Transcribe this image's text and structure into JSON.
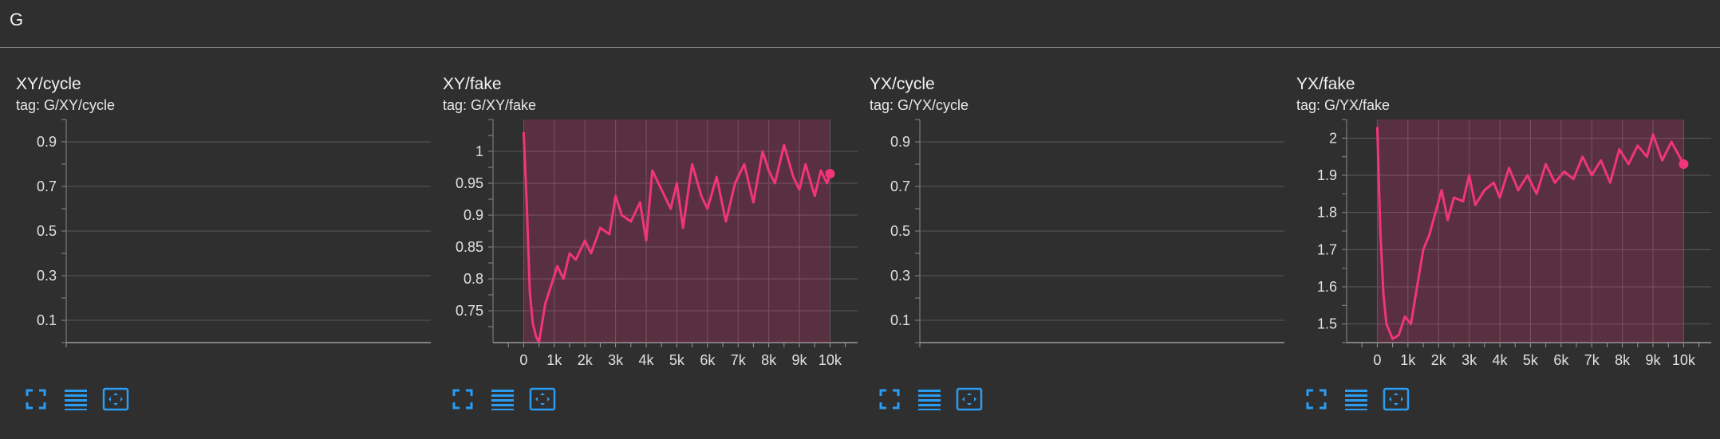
{
  "group": {
    "title": "G"
  },
  "cards": [
    {
      "title": "XY/cycle",
      "tag": "tag: G/XY/cycle"
    },
    {
      "title": "XY/fake",
      "tag": "tag: G/XY/fake"
    },
    {
      "title": "YX/cycle",
      "tag": "tag: G/YX/cycle"
    },
    {
      "title": "YX/fake",
      "tag": "tag: G/YX/fake"
    }
  ],
  "toolbar_icons": [
    "fullscreen-icon",
    "toggle-log-scale-icon",
    "fit-domain-icon"
  ],
  "colors": {
    "background": "#2f2f2f",
    "series": "#f0357a",
    "gridline": "#5a5a5a",
    "icon": "#2a9df4"
  },
  "chart_data": [
    {
      "type": "line",
      "title": "XY/cycle",
      "y_ticks": [
        "0.1",
        "0.3",
        "0.5",
        "0.7",
        "0.9"
      ],
      "ylim": [
        0,
        1.0
      ],
      "series": []
    },
    {
      "type": "line",
      "title": "XY/fake",
      "x_ticks": [
        "0",
        "1k",
        "2k",
        "3k",
        "4k",
        "5k",
        "6k",
        "7k",
        "8k",
        "9k",
        "10k"
      ],
      "xlim": [
        -1000,
        10900
      ],
      "y_ticks": [
        "0.75",
        "0.8",
        "0.85",
        "0.9",
        "0.95",
        "1"
      ],
      "ylim": [
        0.7,
        1.05
      ],
      "last_point": [
        10000,
        0.965
      ],
      "series": [
        {
          "x": [
            0,
            100,
            200,
            300,
            400,
            500,
            700,
            900,
            1100,
            1300,
            1500,
            1700,
            2000,
            2200,
            2500,
            2800,
            3000,
            3200,
            3500,
            3800,
            4000,
            4200,
            4500,
            4800,
            5000,
            5200,
            5500,
            5800,
            6000,
            6300,
            6600,
            6900,
            7200,
            7500,
            7800,
            8000,
            8200,
            8500,
            8800,
            9000,
            9200,
            9500,
            9700,
            9900,
            10000
          ],
          "y": [
            1.03,
            0.92,
            0.78,
            0.73,
            0.71,
            0.7,
            0.76,
            0.79,
            0.82,
            0.8,
            0.84,
            0.83,
            0.86,
            0.84,
            0.88,
            0.87,
            0.93,
            0.9,
            0.89,
            0.92,
            0.86,
            0.97,
            0.94,
            0.91,
            0.95,
            0.88,
            0.98,
            0.93,
            0.91,
            0.96,
            0.89,
            0.95,
            0.98,
            0.92,
            1.0,
            0.97,
            0.95,
            1.01,
            0.96,
            0.94,
            0.98,
            0.93,
            0.97,
            0.95,
            0.965
          ]
        }
      ]
    },
    {
      "type": "line",
      "title": "YX/cycle",
      "y_ticks": [
        "0.1",
        "0.3",
        "0.5",
        "0.7",
        "0.9"
      ],
      "ylim": [
        0,
        1.0
      ],
      "series": []
    },
    {
      "type": "line",
      "title": "YX/fake",
      "x_ticks": [
        "0",
        "1k",
        "2k",
        "3k",
        "4k",
        "5k",
        "6k",
        "7k",
        "8k",
        "9k",
        "10k"
      ],
      "xlim": [
        -1000,
        10900
      ],
      "y_ticks": [
        "1.5",
        "1.6",
        "1.7",
        "1.8",
        "1.9",
        "2"
      ],
      "ylim": [
        1.45,
        2.05
      ],
      "last_point": [
        10000,
        1.93
      ],
      "series": [
        {
          "x": [
            0,
            100,
            200,
            300,
            500,
            700,
            900,
            1100,
            1300,
            1500,
            1700,
            1900,
            2100,
            2300,
            2500,
            2800,
            3000,
            3200,
            3500,
            3800,
            4000,
            4300,
            4600,
            4900,
            5200,
            5500,
            5800,
            6100,
            6400,
            6700,
            7000,
            7300,
            7600,
            7900,
            8200,
            8500,
            8800,
            9000,
            9300,
            9600,
            9800,
            10000
          ],
          "y": [
            2.03,
            1.75,
            1.58,
            1.5,
            1.46,
            1.47,
            1.52,
            1.5,
            1.6,
            1.7,
            1.74,
            1.8,
            1.86,
            1.78,
            1.84,
            1.83,
            1.9,
            1.82,
            1.86,
            1.88,
            1.84,
            1.92,
            1.86,
            1.9,
            1.85,
            1.93,
            1.88,
            1.91,
            1.89,
            1.95,
            1.9,
            1.94,
            1.88,
            1.97,
            1.93,
            1.98,
            1.95,
            2.01,
            1.94,
            1.99,
            1.96,
            1.93
          ]
        }
      ]
    }
  ]
}
